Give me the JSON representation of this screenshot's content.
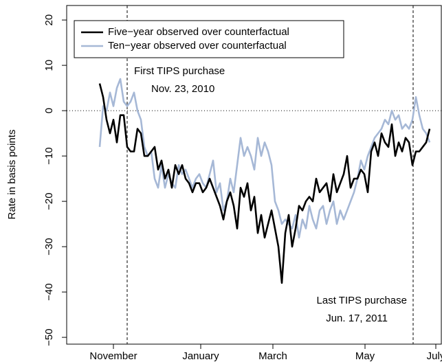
{
  "chart_data": {
    "type": "line",
    "ylabel": "Rate in basis points",
    "xlim": [
      0,
      273
    ],
    "ylim": [
      -51.5,
      23.2
    ],
    "xticks": [
      {
        "value": 34,
        "label": "November"
      },
      {
        "value": 97.5,
        "label": "January"
      },
      {
        "value": 150,
        "label": "March"
      },
      {
        "value": 217,
        "label": "May"
      },
      {
        "value": 268.5,
        "label": "July"
      }
    ],
    "yticks": [
      20,
      10,
      0,
      {
        "value": -10,
        "label": "−10"
      },
      {
        "value": -20,
        "label": "−20"
      },
      {
        "value": -30,
        "label": "−30"
      },
      {
        "value": -40,
        "label": "−40"
      },
      {
        "value": -50,
        "label": "−50"
      }
    ],
    "hline": 0,
    "vlines": [
      44,
      252
    ],
    "annotations": [
      {
        "text": "First TIPS purchase",
        "date": "Nov. 23, 2010"
      },
      {
        "text": "Last TIPS purchase",
        "date": "Jun. 17, 2011"
      }
    ],
    "legend": "upper left",
    "x": [
      24,
      26.5,
      29,
      31.5,
      34,
      36.5,
      39,
      41.5,
      44,
      46.5,
      49,
      51.5,
      54,
      56.5,
      59,
      61.5,
      64,
      66.5,
      69,
      71.5,
      74,
      76.5,
      79,
      81.5,
      84,
      86.5,
      89,
      91.5,
      94,
      96.5,
      99,
      101.5,
      104,
      106.5,
      109,
      111.5,
      114,
      116.5,
      119,
      121.5,
      124,
      126.5,
      129,
      131.5,
      134,
      136.5,
      139,
      141.5,
      144,
      146.5,
      149,
      151.5,
      154,
      156.5,
      159,
      161.5,
      164,
      166.5,
      169,
      171.5,
      174,
      176.5,
      179,
      181.5,
      184,
      186.5,
      189,
      191.5,
      194,
      196.5,
      199,
      201.5,
      204,
      206.5,
      209,
      211.5,
      214,
      216.5,
      219,
      221.5,
      224,
      226.5,
      229,
      231.5,
      234,
      236.5,
      239,
      241.5,
      244,
      246.5,
      249,
      251.5,
      254,
      256.5,
      259,
      261.5,
      264
    ],
    "series": [
      {
        "name": "Five−year observed over counterfactual",
        "color": "#000000",
        "values": [
          6,
          3,
          -2,
          -5,
          -2,
          -7,
          -1,
          -1,
          -8,
          -9,
          -9,
          -4,
          -5,
          -10,
          -10,
          -9,
          -8,
          -13,
          -11,
          -15,
          -13,
          -17,
          -12,
          -14,
          -12,
          -15,
          -16,
          -18,
          -16,
          -16,
          -18,
          -17,
          -15,
          -17,
          -19,
          -21,
          -24,
          -20,
          -18,
          -21,
          -26,
          -17,
          -19,
          -16,
          -22,
          -19,
          -27,
          -23,
          -28,
          -25,
          -22,
          -26,
          -30,
          -38,
          -27,
          -23,
          -30,
          -26,
          -21,
          -22,
          -20,
          -19,
          -20,
          -15,
          -18,
          -17,
          -16,
          -20,
          -14,
          -18,
          -16,
          -14,
          -10,
          -17,
          -15,
          -15,
          -13,
          -14,
          -18,
          -9,
          -7,
          -10,
          -5,
          -7,
          -8,
          -3,
          -10,
          -7,
          -9,
          -6,
          -7,
          -12,
          -9,
          -9,
          -8,
          -7,
          -4
        ]
      },
      {
        "name": "Ten−year observed over counterfactual",
        "color": "#a6b8d6",
        "values": [
          -8,
          1,
          0,
          4,
          1,
          5,
          7,
          2,
          1,
          2,
          4,
          0,
          -2,
          -8,
          -10,
          -9,
          -15,
          -17,
          -12,
          -17,
          -14,
          -16,
          -17,
          -12,
          -14,
          -13,
          -15,
          -17,
          -15,
          -14,
          -16,
          -17,
          -14,
          -11,
          -18,
          -16,
          -22,
          -20,
          -15,
          -18,
          -12,
          -6,
          -10,
          -8,
          -10,
          -13,
          -6,
          -10,
          -7,
          -9,
          -12,
          -20,
          -22,
          -25,
          -24,
          -25,
          -26,
          -23,
          -28,
          -24,
          -26,
          -21,
          -24,
          -26,
          -22,
          -21,
          -25,
          -22,
          -20,
          -25,
          -22,
          -24,
          -22,
          -20,
          -18,
          -15,
          -11,
          -13,
          -10,
          -8,
          -6,
          -5,
          -4,
          -2,
          -3,
          0,
          -2,
          -1,
          -4,
          -3,
          -4,
          -2,
          3,
          -1,
          -4,
          -5,
          -7
        ]
      }
    ]
  }
}
